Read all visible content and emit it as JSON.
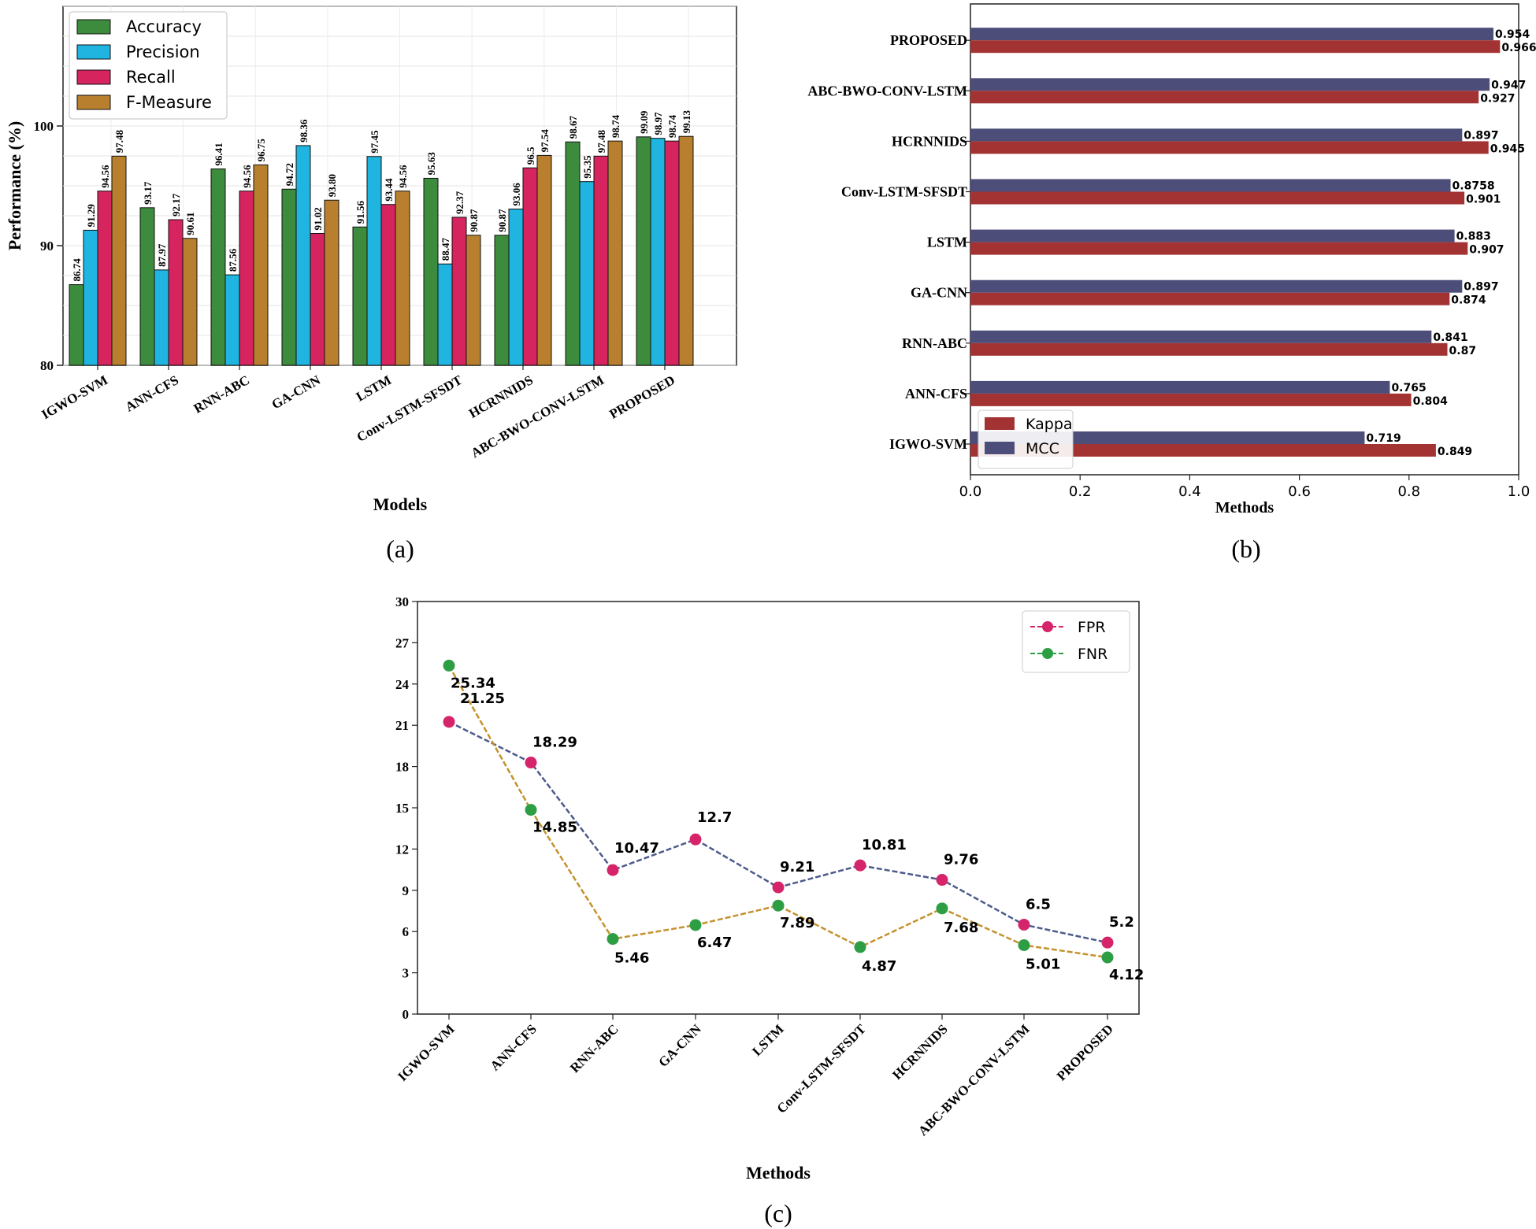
{
  "chart_data": [
    {
      "id": "a",
      "type": "bar",
      "panel_label": "(a)",
      "xlabel": "Models",
      "ylabel": "Performance (%)",
      "ylim": [
        80,
        110
      ],
      "yticks": [
        80,
        90,
        100
      ],
      "grid": true,
      "legend_position": "top-left",
      "categories": [
        "IGWO-SVM",
        "ANN-CFS",
        "RNN-ABC",
        "GA-CNN",
        "LSTM",
        "Conv-LSTM-SFSDT",
        "HCRNNIDS",
        "ABC-BWO-CONV-LSTM",
        "PROPOSED"
      ],
      "series": [
        {
          "name": "Accuracy",
          "color": "#3d8c3d",
          "values": [
            86.74,
            93.17,
            96.41,
            94.72,
            91.56,
            95.63,
            90.87,
            98.67,
            99.09
          ],
          "labels": [
            "86.74",
            "93.17",
            "96.41",
            "94.72",
            "91.56",
            "95.63",
            "90.87",
            "98.67",
            "99.09"
          ]
        },
        {
          "name": "Precision",
          "color": "#1fb5e0",
          "values": [
            91.29,
            87.97,
            87.56,
            98.36,
            97.45,
            88.47,
            93.06,
            95.35,
            98.97
          ],
          "labels": [
            "91.29",
            "87.97",
            "87.56",
            "98.36",
            "97.45",
            "88.47",
            "93.06",
            "95.35",
            "98.97"
          ]
        },
        {
          "name": "Recall",
          "color": "#d6245f",
          "values": [
            94.56,
            92.17,
            94.56,
            91.02,
            93.44,
            92.37,
            96.5,
            97.48,
            98.74
          ],
          "labels": [
            "94.56",
            "92.17",
            "94.56",
            "91.02",
            "93.44",
            "92.37",
            "96.5",
            "97.48",
            "98.74"
          ]
        },
        {
          "name": "F-Measure",
          "color": "#b8802e",
          "values": [
            97.48,
            90.61,
            96.75,
            93.8,
            94.56,
            90.87,
            97.54,
            98.74,
            99.13
          ],
          "labels": [
            "97.48",
            "90.61",
            "96.75",
            "93.80",
            "94.56",
            "90.87",
            "97.54",
            "98.74",
            "99.13"
          ]
        }
      ]
    },
    {
      "id": "b",
      "type": "bar",
      "orientation": "horizontal",
      "panel_label": "(b)",
      "xlabel": "Methods",
      "xlim": [
        0,
        1.0
      ],
      "xticks": [
        "0.0",
        "0.2",
        "0.4",
        "0.6",
        "0.8",
        "1.0"
      ],
      "legend_position": "bottom-left",
      "categories": [
        "IGWO-SVM",
        "ANN-CFS",
        "RNN-ABC",
        "GA-CNN",
        "LSTM",
        "Conv-LSTM-SFSDT",
        "HCRNNIDS",
        "ABC-BWO-CONV-LSTM",
        "PROPOSED"
      ],
      "series": [
        {
          "name": "Kappa",
          "color": "#a33333",
          "values": [
            0.849,
            0.804,
            0.87,
            0.874,
            0.907,
            0.901,
            0.945,
            0.927,
            0.966
          ],
          "labels": [
            "0.849",
            "0.804",
            "0.87",
            "0.874",
            "0.907",
            "0.901",
            "0.945",
            "0.927",
            "0.966"
          ]
        },
        {
          "name": "MCC",
          "color": "#4d4d7a",
          "values": [
            0.719,
            0.765,
            0.841,
            0.897,
            0.883,
            0.8758,
            0.897,
            0.947,
            0.954
          ],
          "labels": [
            "0.719",
            "0.765",
            "0.841",
            "0.897",
            "0.883",
            "0.8758",
            "0.897",
            "0.947",
            "0.954"
          ]
        }
      ]
    },
    {
      "id": "c",
      "type": "line",
      "panel_label": "(c)",
      "xlabel": "Methods",
      "ylim": [
        0,
        30
      ],
      "yticks": [
        0,
        3,
        6,
        9,
        12,
        15,
        18,
        21,
        24,
        27,
        30
      ],
      "legend_position": "top-right",
      "categories": [
        "IGWO-SVM",
        "ANN-CFS",
        "RNN-ABC",
        "GA-CNN",
        "LSTM",
        "Conv-LSTM-SFSDT",
        "HCRNNIDS",
        "ABC-BWO-CONV-LSTM",
        "PROPOSED"
      ],
      "series": [
        {
          "name": "FPR",
          "marker_color": "#d6246a",
          "line_color": "#4d5a8c",
          "values": [
            21.25,
            18.29,
            10.47,
            12.7,
            9.21,
            10.81,
            9.76,
            6.5,
            5.2
          ],
          "labels": [
            "21.25",
            "18.29",
            "10.47",
            "12.7",
            "9.21",
            "10.81",
            "9.76",
            "6.5",
            "5.2"
          ]
        },
        {
          "name": "FNR",
          "marker_color": "#2e9e45",
          "line_color": "#c4922e",
          "values": [
            25.34,
            14.85,
            5.46,
            6.47,
            7.89,
            4.87,
            7.68,
            5.01,
            4.12
          ],
          "labels": [
            "25.34",
            "14.85",
            "5.46",
            "6.47",
            "7.89",
            "4.87",
            "7.68",
            "5.01",
            "4.12"
          ]
        }
      ]
    }
  ]
}
